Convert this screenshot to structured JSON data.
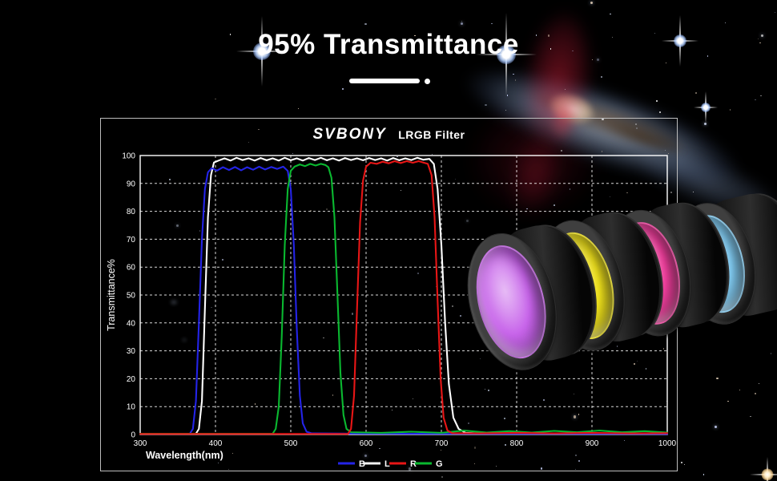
{
  "hero": {
    "heading": "95% Transmittance",
    "accent_color": "#ffffff"
  },
  "panel": {
    "brand": "SVBONY",
    "product": "LRGB Filter"
  },
  "filters": {
    "names": [
      "purple-filter",
      "yellow-filter",
      "pink-filter",
      "blue-filter"
    ],
    "glass_colors": [
      "#c763ea",
      "#f2e41c",
      "#f23f9e",
      "#82cdf4"
    ]
  },
  "chart_data": {
    "type": "line",
    "title": "SVBONY LRGB Filter",
    "xlabel": "Wavelength(nm)",
    "ylabel": "Transmittance%",
    "xlim": [
      300,
      1000
    ],
    "ylim": [
      0,
      100
    ],
    "xticks": [
      300,
      400,
      500,
      600,
      700,
      800,
      900,
      1000
    ],
    "yticks": [
      0,
      10,
      20,
      30,
      40,
      50,
      60,
      70,
      80,
      90,
      100
    ],
    "grid": "dashed",
    "legend_position": "bottom-right",
    "legend": [
      {
        "label": "B",
        "color": "#2424e8"
      },
      {
        "label": "L",
        "color": "#f2f2f2"
      },
      {
        "label": "R",
        "color": "#e81616"
      },
      {
        "label": "G",
        "color": "#0ab830"
      }
    ],
    "series": [
      {
        "name": "L",
        "color": "#ffffff",
        "points": [
          [
            300,
            0.3
          ],
          [
            374,
            0.3
          ],
          [
            378,
            2
          ],
          [
            382,
            12
          ],
          [
            386,
            45
          ],
          [
            390,
            78
          ],
          [
            394,
            93
          ],
          [
            398,
            97.5
          ],
          [
            404,
            98.2
          ],
          [
            412,
            99
          ],
          [
            420,
            98.2
          ],
          [
            428,
            99.2
          ],
          [
            436,
            98.4
          ],
          [
            444,
            99
          ],
          [
            452,
            98.2
          ],
          [
            460,
            99.1
          ],
          [
            468,
            98.3
          ],
          [
            476,
            99
          ],
          [
            484,
            98.2
          ],
          [
            492,
            99.2
          ],
          [
            500,
            98.3
          ],
          [
            508,
            99
          ],
          [
            516,
            98.2
          ],
          [
            524,
            99.1
          ],
          [
            532,
            98.4
          ],
          [
            540,
            99.2
          ],
          [
            548,
            98.3
          ],
          [
            556,
            99
          ],
          [
            564,
            98.2
          ],
          [
            572,
            99.1
          ],
          [
            580,
            98.4
          ],
          [
            588,
            99
          ],
          [
            596,
            98.3
          ],
          [
            604,
            99.1
          ],
          [
            612,
            98.4
          ],
          [
            620,
            99
          ],
          [
            628,
            98.2
          ],
          [
            636,
            99.1
          ],
          [
            644,
            98.3
          ],
          [
            652,
            99
          ],
          [
            660,
            98.4
          ],
          [
            668,
            99.2
          ],
          [
            676,
            98.5
          ],
          [
            684,
            98.8
          ],
          [
            690,
            97
          ],
          [
            695,
            88
          ],
          [
            700,
            68
          ],
          [
            705,
            40
          ],
          [
            710,
            18
          ],
          [
            716,
            6
          ],
          [
            723,
            2
          ],
          [
            732,
            0.6
          ],
          [
            760,
            0.3
          ],
          [
            850,
            0.3
          ],
          [
            1000,
            0.3
          ]
        ]
      },
      {
        "name": "B",
        "color": "#2424e8",
        "points": [
          [
            300,
            0.3
          ],
          [
            366,
            0.3
          ],
          [
            370,
            2
          ],
          [
            374,
            12
          ],
          [
            378,
            40
          ],
          [
            382,
            70
          ],
          [
            386,
            88
          ],
          [
            390,
            94
          ],
          [
            395,
            95.5
          ],
          [
            402,
            94.6
          ],
          [
            410,
            95.8
          ],
          [
            418,
            94.8
          ],
          [
            426,
            95.9
          ],
          [
            434,
            94.7
          ],
          [
            442,
            95.8
          ],
          [
            450,
            94.9
          ],
          [
            458,
            96
          ],
          [
            466,
            95
          ],
          [
            474,
            95.9
          ],
          [
            482,
            95.2
          ],
          [
            490,
            96
          ],
          [
            496,
            94.5
          ],
          [
            500,
            88
          ],
          [
            504,
            68
          ],
          [
            508,
            38
          ],
          [
            512,
            14
          ],
          [
            516,
            4
          ],
          [
            521,
            1
          ],
          [
            528,
            0.4
          ],
          [
            600,
            0.3
          ],
          [
            1000,
            0.2
          ]
        ]
      },
      {
        "name": "G",
        "color": "#0ab830",
        "points": [
          [
            300,
            0.3
          ],
          [
            476,
            0.3
          ],
          [
            480,
            2
          ],
          [
            484,
            10
          ],
          [
            488,
            35
          ],
          [
            492,
            68
          ],
          [
            496,
            88
          ],
          [
            500,
            94.5
          ],
          [
            505,
            96
          ],
          [
            512,
            96.8
          ],
          [
            519,
            96.2
          ],
          [
            526,
            97
          ],
          [
            533,
            96.4
          ],
          [
            540,
            97
          ],
          [
            546,
            96.6
          ],
          [
            550,
            95.8
          ],
          [
            554,
            92
          ],
          [
            558,
            78
          ],
          [
            562,
            50
          ],
          [
            566,
            22
          ],
          [
            570,
            7
          ],
          [
            574,
            2
          ],
          [
            580,
            0.8
          ],
          [
            620,
            0.6
          ],
          [
            660,
            1
          ],
          [
            700,
            0.6
          ],
          [
            730,
            1.4
          ],
          [
            760,
            0.7
          ],
          [
            790,
            1.2
          ],
          [
            820,
            0.7
          ],
          [
            850,
            1.3
          ],
          [
            880,
            0.8
          ],
          [
            910,
            1.4
          ],
          [
            940,
            0.8
          ],
          [
            970,
            1.2
          ],
          [
            1000,
            0.7
          ]
        ]
      },
      {
        "name": "R",
        "color": "#e81616",
        "points": [
          [
            300,
            0.2
          ],
          [
            576,
            0.2
          ],
          [
            580,
            2
          ],
          [
            584,
            14
          ],
          [
            588,
            45
          ],
          [
            592,
            76
          ],
          [
            596,
            91
          ],
          [
            600,
            96
          ],
          [
            606,
            97.4
          ],
          [
            614,
            97
          ],
          [
            622,
            97.8
          ],
          [
            630,
            97.2
          ],
          [
            638,
            98
          ],
          [
            646,
            97.3
          ],
          [
            654,
            98
          ],
          [
            662,
            97.4
          ],
          [
            670,
            98
          ],
          [
            676,
            97.5
          ],
          [
            682,
            97
          ],
          [
            687,
            93
          ],
          [
            691,
            78
          ],
          [
            695,
            48
          ],
          [
            699,
            20
          ],
          [
            703,
            6
          ],
          [
            708,
            1.5
          ],
          [
            714,
            0.5
          ],
          [
            750,
            0.4
          ],
          [
            800,
            0.6
          ],
          [
            850,
            0.4
          ],
          [
            900,
            0.6
          ],
          [
            950,
            0.4
          ],
          [
            1000,
            0.5
          ]
        ]
      }
    ]
  }
}
